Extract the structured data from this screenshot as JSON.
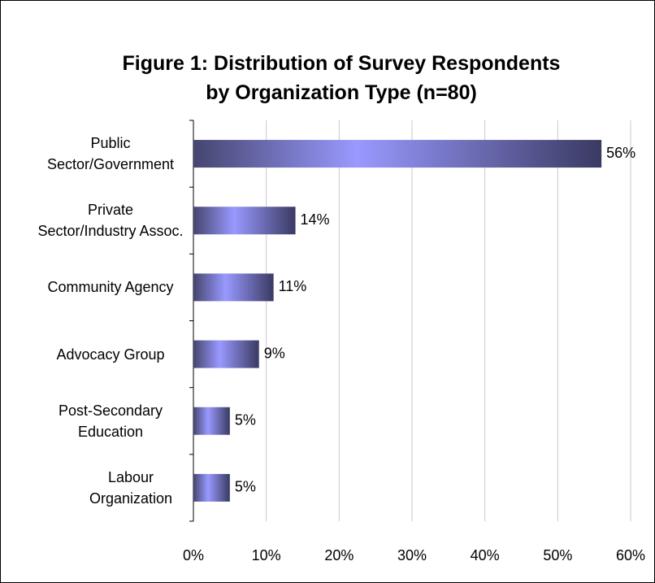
{
  "chart_data": {
    "type": "barh",
    "title": "Figure 1: Distribution of Survey Respondents by Organization Type (n=80)",
    "categories": [
      "Public Sector/Government",
      "Private Sector/Industry Assoc.",
      "Community Agency",
      "Advocacy Group",
      "Post-Secondary Education",
      "Labour Organization"
    ],
    "values": [
      56,
      14,
      11,
      9,
      5,
      5
    ],
    "value_labels": [
      "56%",
      "14%",
      "11%",
      "9%",
      "5%",
      "5%"
    ],
    "color": "#9999ff",
    "xlim": [
      0,
      60
    ],
    "xticks": [
      {
        "value": 0,
        "label": "0%"
      },
      {
        "value": 10,
        "label": "10%"
      },
      {
        "value": 20,
        "label": "20%"
      },
      {
        "value": 30,
        "label": "30%"
      },
      {
        "value": 40,
        "label": "40%"
      },
      {
        "value": 50,
        "label": "50%"
      },
      {
        "value": 60,
        "label": "60%"
      }
    ],
    "grid": true
  }
}
